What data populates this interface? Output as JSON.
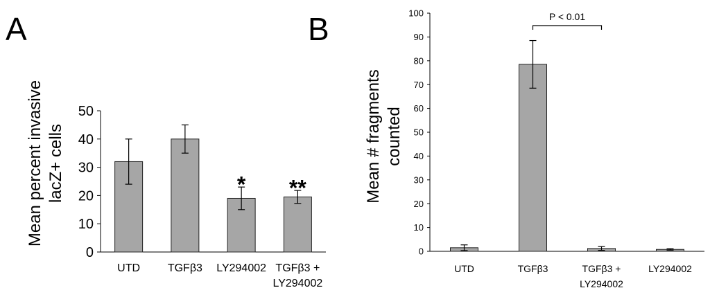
{
  "chart_data": [
    {
      "panel_label": "A",
      "type": "bar",
      "ylabel_lines": [
        "Mean percent invasive",
        "lacZ+ cells"
      ],
      "categories": [
        [
          "UTD"
        ],
        [
          "TGFβ3"
        ],
        [
          "LY294002"
        ],
        [
          "TGFβ3 +",
          "LY294002"
        ]
      ],
      "values": [
        32,
        40,
        19,
        19.5
      ],
      "errors": [
        8,
        5,
        4,
        2.3
      ],
      "significance": [
        "",
        "",
        "*",
        "**"
      ],
      "ylim": [
        0,
        50
      ],
      "yticks": [
        "0",
        "10",
        "20",
        "30",
        "40",
        "50"
      ],
      "bar_color": "#a6a6a6",
      "grid": false
    },
    {
      "panel_label": "B",
      "type": "bar",
      "ylabel_lines": [
        "Mean # fragments",
        "counted"
      ],
      "categories": [
        [
          "UTD"
        ],
        [
          "TGFβ3"
        ],
        [
          "TGFβ3 +",
          "LY294002"
        ],
        [
          "LY294002"
        ]
      ],
      "values": [
        1.5,
        78.5,
        1.2,
        0.8
      ],
      "errors": [
        1.2,
        10,
        0.8,
        0.3
      ],
      "ylim": [
        0,
        100
      ],
      "yticks": [
        "0",
        "10",
        "20",
        "30",
        "40",
        "50",
        "60",
        "70",
        "80",
        "90",
        "100"
      ],
      "annotation": {
        "text": "P < 0.01",
        "from_category": 1,
        "to_category": 2
      },
      "bar_color": "#a6a6a6",
      "grid": false
    }
  ]
}
